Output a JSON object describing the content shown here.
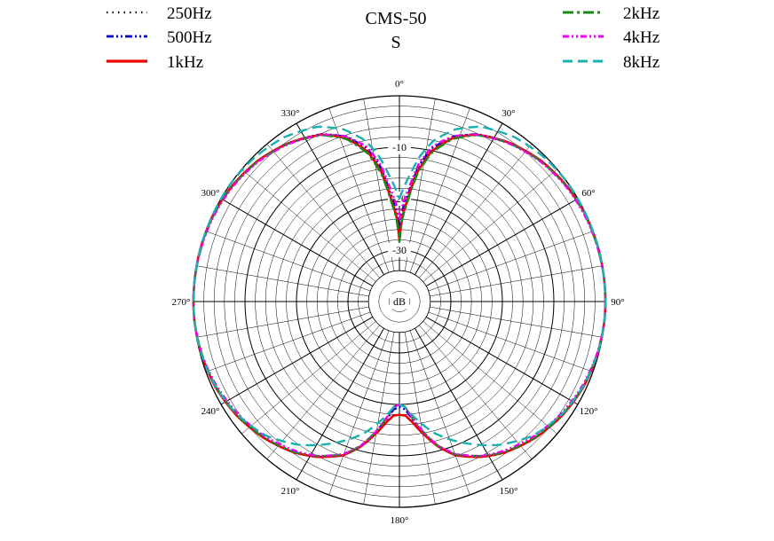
{
  "chart_data": {
    "type": "polar-line",
    "title": "CMS-50",
    "subtitle": "S",
    "radial_unit_label": "dB",
    "radial_range": [
      -40,
      0
    ],
    "radial_ticks": [
      -10,
      -20,
      -30
    ],
    "radial_tick_labels": [
      "-10",
      "-20",
      "-30"
    ],
    "angle_ticks": [
      0,
      30,
      60,
      90,
      120,
      150,
      180,
      210,
      240,
      270,
      300,
      330
    ],
    "angle_tick_labels": [
      "0°",
      "30°",
      "60°",
      "90°",
      "120°",
      "150°",
      "180°",
      "210°",
      "240°",
      "270°",
      "300°",
      "330°"
    ],
    "grid": true,
    "legend_placement": "top",
    "angles_deg": [
      0,
      2,
      5,
      8,
      12,
      18,
      25,
      35,
      45,
      55,
      65,
      75,
      85,
      90,
      95,
      105,
      115,
      125,
      135,
      145,
      152,
      160,
      165,
      170,
      174,
      177,
      180
    ],
    "series": [
      {
        "name": "250Hz",
        "color": "#000000",
        "dash": "1.5,5",
        "width": 1.6,
        "values_db": [
          -27,
          -23,
          -19,
          -14,
          -10,
          -6.5,
          -4.2,
          -2.4,
          -1.2,
          -0.5,
          -0.1,
          0,
          0,
          0,
          0,
          -0.2,
          -0.6,
          -1.4,
          -2.6,
          -4.2,
          -5.8,
          -8.2,
          -10.8,
          -14.5,
          -17.5,
          -19.5,
          -20
        ]
      },
      {
        "name": "500Hz",
        "color": "#0000cc",
        "dash": "8,3,2,3,2,3",
        "width": 2.2,
        "values_db": [
          -26,
          -22,
          -18.5,
          -13.5,
          -9.5,
          -6.3,
          -4.1,
          -2.4,
          -1.2,
          -0.5,
          -0.1,
          0,
          0,
          0,
          0,
          -0.2,
          -0.6,
          -1.4,
          -2.6,
          -4.2,
          -5.8,
          -8.2,
          -10.8,
          -14.3,
          -17.2,
          -19,
          -19.5
        ]
      },
      {
        "name": "1kHz",
        "color": "#ee0000",
        "dash": "",
        "width": 2.6,
        "values_db": [
          -28,
          -23.5,
          -19.5,
          -14.5,
          -10.2,
          -6.6,
          -4.2,
          -2.4,
          -1.2,
          -0.5,
          -0.1,
          0,
          0,
          0,
          0,
          -0.2,
          -0.6,
          -1.4,
          -2.6,
          -4.2,
          -5.8,
          -8.2,
          -10.8,
          -14,
          -16.5,
          -17.8,
          -18
        ]
      },
      {
        "name": "2kHz",
        "color": "#1a8a1a",
        "dash": "12,4,3,4",
        "width": 2.4,
        "values_db": [
          -28.5,
          -24,
          -20,
          -15,
          -10.6,
          -6.8,
          -4.3,
          -2.5,
          -1.3,
          -0.6,
          -0.2,
          -0.1,
          0,
          0,
          0,
          -0.3,
          -0.7,
          -1.5,
          -2.7,
          -4.3,
          -6,
          -8.4,
          -11,
          -14.5,
          -17.5,
          -19.5,
          -20
        ]
      },
      {
        "name": "4kHz",
        "color": "#ee00ee",
        "dash": "7,3,2,3,2,3",
        "width": 2.4,
        "values_db": [
          -24,
          -21,
          -17.5,
          -13,
          -9.2,
          -6.2,
          -4.2,
          -2.6,
          -1.4,
          -0.7,
          -0.3,
          -0.1,
          0,
          0,
          0,
          -0.3,
          -0.9,
          -1.8,
          -3,
          -4.6,
          -6,
          -8.5,
          -11,
          -14.5,
          -17.5,
          -19.5,
          -20
        ]
      },
      {
        "name": "8kHz",
        "color": "#1ab0b0",
        "dash": "11,6",
        "width": 2.4,
        "values_db": [
          -20,
          -18,
          -15,
          -11.5,
          -8,
          -4.8,
          -2.5,
          -1,
          -0.3,
          0,
          0,
          0,
          0,
          0,
          0,
          -0.2,
          -0.7,
          -1.6,
          -3.2,
          -6,
          -8.5,
          -11.5,
          -13.5,
          -16,
          -18,
          -19.5,
          -20
        ]
      }
    ]
  }
}
